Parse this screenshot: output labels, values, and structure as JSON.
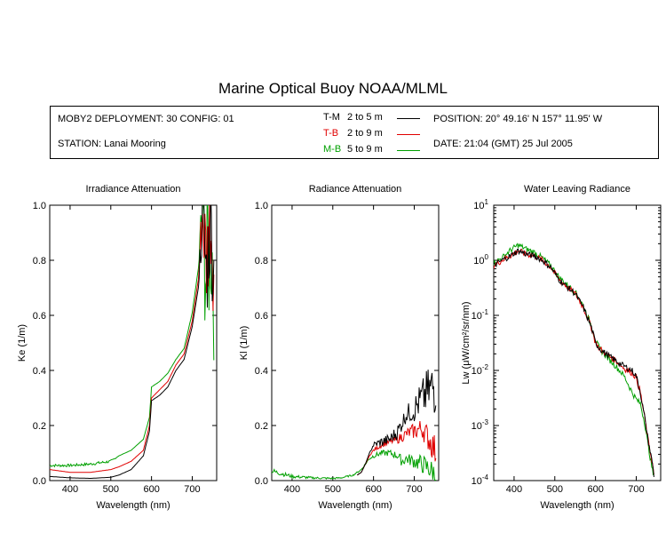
{
  "title": "Marine Optical Buoy NOAA/MLML",
  "info": {
    "deployment": "MOBY2 DEPLOYMENT: 30 CONFIG: 01",
    "station": "STATION: Lanai Mooring",
    "position": "POSITION: 20° 49.16' N   157° 11.95' W",
    "date": "DATE: 21:04 (GMT) 25 Jul 2005",
    "legend": [
      {
        "code": "T-M",
        "range": "2 to 5  m",
        "color": "#000000"
      },
      {
        "code": "T-B",
        "range": "2 to 9  m",
        "color": "#e00000"
      },
      {
        "code": "M-B",
        "range": "5 to 9  m",
        "color": "#00a000"
      }
    ]
  },
  "colors": {
    "T-M": "#000000",
    "T-B": "#e00000",
    "M-B": "#00a000"
  },
  "chart_data": [
    {
      "type": "line",
      "title": "Irradiance Attenuation",
      "xlabel": "Wavelength (nm)",
      "ylabel": "Ke  (1/m)",
      "xlim": [
        350,
        760
      ],
      "ylim": [
        0,
        1.0
      ],
      "xticks": [
        400,
        500,
        600,
        700
      ],
      "yticks": [
        "0.0",
        "0.2",
        "0.4",
        "0.6",
        "0.8",
        "1.0"
      ],
      "series": [
        {
          "name": "T-M",
          "x": [
            350,
            400,
            450,
            500,
            520,
            550,
            580,
            595,
            600,
            620,
            640,
            660,
            680,
            700,
            715,
            725,
            735,
            745,
            755
          ],
          "y": [
            0.015,
            0.01,
            0.008,
            0.012,
            0.02,
            0.04,
            0.09,
            0.18,
            0.29,
            0.31,
            0.34,
            0.4,
            0.44,
            0.56,
            0.7,
            0.96,
            0.75,
            0.95,
            0.7
          ],
          "noise": [
            0,
            0,
            0,
            0,
            0,
            0,
            0,
            0,
            0,
            0,
            0,
            0,
            0,
            0,
            0,
            0.15,
            0.2,
            0.2,
            0.2
          ]
        },
        {
          "name": "T-B",
          "x": [
            350,
            400,
            450,
            500,
            520,
            550,
            580,
            595,
            600,
            620,
            640,
            660,
            680,
            700,
            715,
            725,
            735,
            745,
            755
          ],
          "y": [
            0.04,
            0.03,
            0.03,
            0.04,
            0.05,
            0.07,
            0.11,
            0.2,
            0.3,
            0.33,
            0.36,
            0.42,
            0.46,
            0.58,
            0.73,
            0.97,
            0.8,
            0.96,
            0.72
          ],
          "noise": [
            0,
            0,
            0,
            0,
            0,
            0,
            0,
            0,
            0,
            0,
            0,
            0,
            0,
            0,
            0,
            0.15,
            0.2,
            0.2,
            0.2
          ]
        },
        {
          "name": "M-B",
          "x": [
            350,
            400,
            450,
            500,
            520,
            550,
            580,
            595,
            600,
            620,
            640,
            660,
            680,
            700,
            715,
            725,
            735,
            745,
            755
          ],
          "y": [
            0.055,
            0.055,
            0.06,
            0.07,
            0.09,
            0.11,
            0.15,
            0.23,
            0.34,
            0.36,
            0.39,
            0.44,
            0.48,
            0.61,
            0.77,
            0.98,
            0.75,
            0.9,
            0.68
          ],
          "noise": [
            0.005,
            0.005,
            0.005,
            0.005,
            0,
            0,
            0,
            0,
            0,
            0,
            0,
            0,
            0,
            0,
            0,
            0.2,
            0.35,
            0.3,
            0.3
          ]
        }
      ]
    },
    {
      "type": "line",
      "title": "Radiance Attenuation",
      "xlabel": "Wavelength (nm)",
      "ylabel": "Kl  (1/m)",
      "xlim": [
        350,
        760
      ],
      "ylim": [
        0,
        1.0
      ],
      "xticks": [
        400,
        500,
        600,
        700
      ],
      "yticks": [
        "0.0",
        "0.2",
        "0.4",
        "0.6",
        "0.8",
        "1.0"
      ],
      "series": [
        {
          "name": "T-M",
          "x": [
            350,
            400,
            450,
            500,
            520,
            550,
            570,
            580,
            590,
            600,
            620,
            640,
            660,
            670,
            680,
            700,
            720,
            740,
            755
          ],
          "y": [
            0.0,
            0.0,
            0.0,
            0.0,
            0.0,
            0.01,
            0.03,
            0.06,
            0.1,
            0.13,
            0.14,
            0.15,
            0.18,
            0.21,
            0.24,
            0.26,
            0.3,
            0.33,
            0.35
          ],
          "noise": [
            0,
            0,
            0,
            0,
            0,
            0,
            0,
            0,
            0,
            0.01,
            0.02,
            0.02,
            0.03,
            0.03,
            0.03,
            0.05,
            0.07,
            0.1,
            0.12
          ],
          "xstart": 560
        },
        {
          "name": "T-B",
          "x": [
            350,
            400,
            450,
            500,
            520,
            550,
            570,
            580,
            590,
            600,
            620,
            640,
            660,
            670,
            680,
            700,
            720,
            740,
            755
          ],
          "y": [
            0.0,
            0.0,
            0.0,
            0.0,
            0.0,
            0.01,
            0.03,
            0.06,
            0.09,
            0.11,
            0.13,
            0.14,
            0.15,
            0.16,
            0.17,
            0.18,
            0.19,
            0.14,
            0.1
          ],
          "noise": [
            0,
            0,
            0,
            0,
            0,
            0,
            0,
            0,
            0,
            0.005,
            0.01,
            0.01,
            0.015,
            0.02,
            0.02,
            0.03,
            0.04,
            0.05,
            0.06
          ],
          "xstart": 560
        },
        {
          "name": "M-B",
          "x": [
            350,
            400,
            450,
            500,
            520,
            550,
            570,
            580,
            590,
            600,
            620,
            640,
            660,
            670,
            680,
            700,
            720,
            740,
            755
          ],
          "y": [
            0.035,
            0.015,
            0.01,
            0.008,
            0.01,
            0.02,
            0.04,
            0.06,
            0.08,
            0.09,
            0.1,
            0.1,
            0.09,
            0.07,
            0.08,
            0.07,
            0.06,
            0.04,
            0.02
          ],
          "noise": [
            0.01,
            0.006,
            0.004,
            0.003,
            0.003,
            0.003,
            0.003,
            0.004,
            0.005,
            0.008,
            0.01,
            0.012,
            0.015,
            0.02,
            0.02,
            0.025,
            0.035,
            0.04,
            0.04
          ]
        }
      ]
    },
    {
      "type": "line",
      "title": "Water Leaving Radiance",
      "xlabel": "Wavelength (nm)",
      "ylabel": "Lw  (μW/cm²/sr/nm)",
      "yscale": "log",
      "xlim": [
        350,
        760
      ],
      "ylim": [
        0.0001,
        10
      ],
      "xticks": [
        400,
        500,
        600,
        700
      ],
      "yticks": [
        {
          "base": "10",
          "exp": "1",
          "value": 10
        },
        {
          "base": "10",
          "exp": "0",
          "value": 1
        },
        {
          "base": "10",
          "exp": "-1",
          "value": 0.1
        },
        {
          "base": "10",
          "exp": "-2",
          "value": 0.01
        },
        {
          "base": "10",
          "exp": "-3",
          "value": 0.001
        },
        {
          "base": "10",
          "exp": "-4",
          "value": 0.0001
        }
      ],
      "series": [
        {
          "name": "T-M",
          "x": [
            350,
            370,
            390,
            410,
            430,
            450,
            470,
            490,
            510,
            530,
            550,
            570,
            590,
            600,
            610,
            630,
            650,
            670,
            690,
            700,
            710,
            720,
            730,
            740,
            745
          ],
          "y": [
            0.8,
            1.0,
            1.2,
            1.5,
            1.3,
            1.2,
            1.0,
            0.75,
            0.45,
            0.33,
            0.25,
            0.14,
            0.06,
            0.032,
            0.025,
            0.019,
            0.015,
            0.012,
            0.01,
            0.008,
            0.004,
            0.0015,
            0.0005,
            0.0002,
            0.0001
          ]
        },
        {
          "name": "T-B",
          "x": [
            350,
            370,
            390,
            410,
            430,
            450,
            470,
            490,
            510,
            530,
            550,
            570,
            590,
            600,
            610,
            630,
            650,
            670,
            690,
            700,
            710,
            720,
            730,
            740,
            745
          ],
          "y": [
            0.8,
            1.0,
            1.2,
            1.5,
            1.3,
            1.2,
            1.0,
            0.75,
            0.45,
            0.33,
            0.25,
            0.14,
            0.06,
            0.032,
            0.025,
            0.019,
            0.015,
            0.011,
            0.009,
            0.0075,
            0.004,
            0.0015,
            0.0005,
            0.0002,
            0.0001
          ]
        },
        {
          "name": "M-B",
          "x": [
            350,
            370,
            390,
            410,
            430,
            450,
            470,
            490,
            510,
            530,
            550,
            570,
            590,
            600,
            610,
            630,
            650,
            670,
            690,
            700,
            710,
            720,
            730,
            740,
            745
          ],
          "y": [
            0.9,
            1.1,
            1.5,
            1.9,
            1.6,
            1.4,
            1.1,
            0.8,
            0.5,
            0.36,
            0.27,
            0.15,
            0.065,
            0.035,
            0.025,
            0.017,
            0.012,
            0.008,
            0.004,
            0.003,
            0.0025,
            0.0012,
            0.0004,
            0.00015,
            0.0001
          ]
        }
      ]
    }
  ]
}
